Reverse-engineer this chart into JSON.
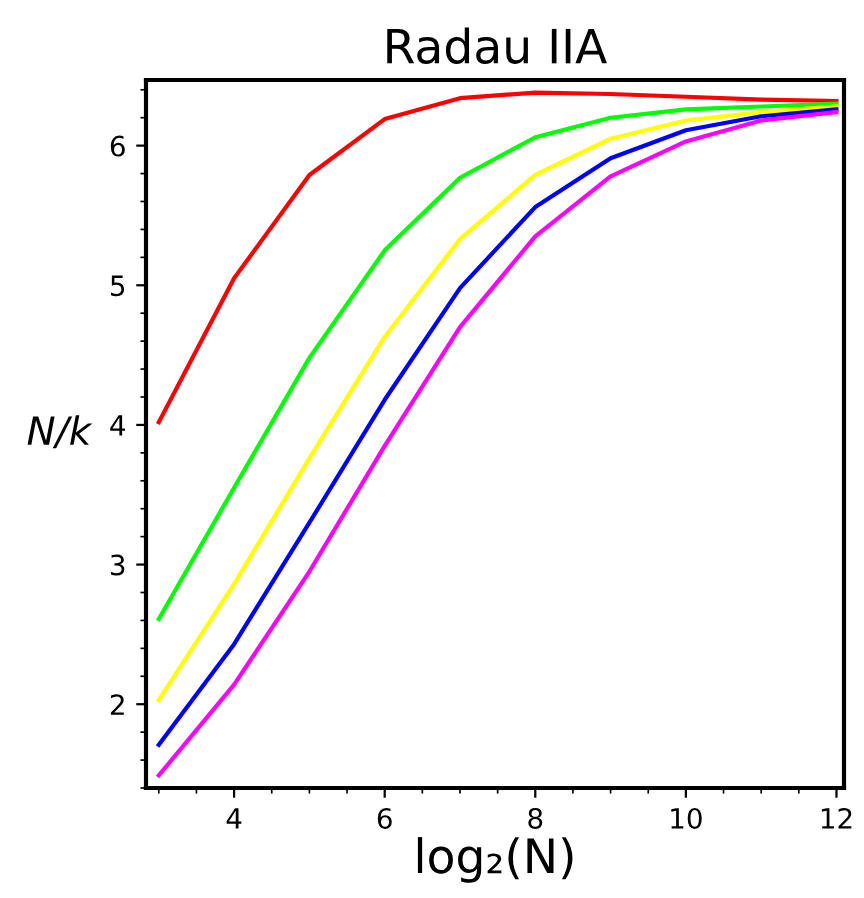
{
  "chart_data": {
    "type": "line",
    "title": "Radau IIA",
    "xlabel": "log₂(N)",
    "ylabel": "N/k",
    "x": [
      3,
      4,
      5,
      6,
      7,
      8,
      9,
      10,
      11,
      12
    ],
    "series": [
      {
        "color": "#ff0000",
        "values": [
          4.02,
          5.05,
          5.79,
          6.19,
          6.34,
          6.38,
          6.37,
          6.35,
          6.33,
          6.32
        ]
      },
      {
        "color": "#00ff00",
        "values": [
          2.61,
          3.55,
          4.48,
          5.25,
          5.77,
          6.06,
          6.2,
          6.26,
          6.28,
          6.3
        ]
      },
      {
        "color": "#ffff00",
        "values": [
          2.03,
          2.86,
          3.76,
          4.63,
          5.33,
          5.79,
          6.05,
          6.18,
          6.24,
          6.28
        ]
      },
      {
        "color": "#0000ff",
        "values": [
          1.71,
          2.43,
          3.3,
          4.18,
          4.98,
          5.56,
          5.91,
          6.11,
          6.21,
          6.26
        ]
      },
      {
        "color": "#ff00ff",
        "values": [
          1.49,
          2.14,
          2.95,
          3.85,
          4.7,
          5.35,
          5.78,
          6.03,
          6.18,
          6.24
        ]
      }
    ],
    "xlim": [
      2.83,
      12.1
    ],
    "ylim": [
      1.4,
      6.47
    ],
    "xticks": [
      4,
      6,
      8,
      10,
      12
    ],
    "yticks": [
      2,
      3,
      4,
      5,
      6
    ],
    "grid": false,
    "marker": "none",
    "line_style": "solid"
  }
}
